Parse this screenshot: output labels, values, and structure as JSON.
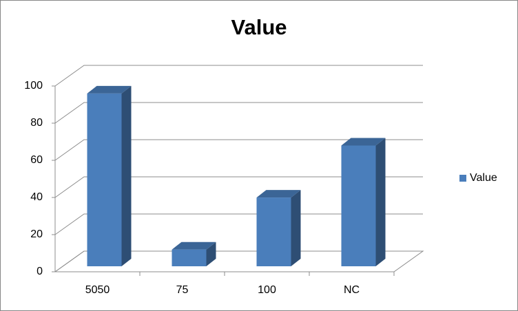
{
  "chart_data": {
    "type": "bar3d",
    "title": "Value",
    "categories": [
      "5050",
      "75",
      "100",
      "NC"
    ],
    "series": [
      {
        "name": "Value",
        "color": "#4a7ebb",
        "values": [
          93,
          9,
          37,
          65
        ]
      }
    ],
    "ylim": [
      0,
      100
    ],
    "yticks": [
      0,
      20,
      40,
      60,
      80,
      100
    ],
    "grid": true,
    "legend": "right"
  }
}
